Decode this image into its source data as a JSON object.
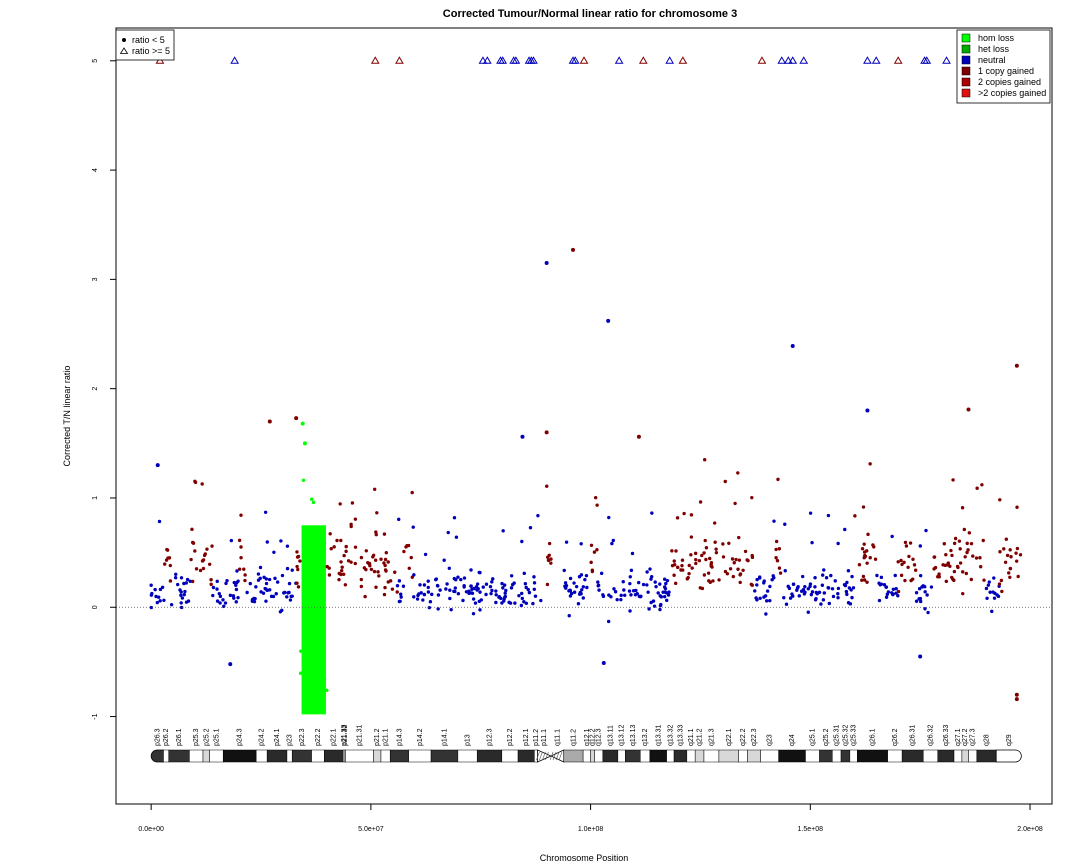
{
  "chart_data": {
    "type": "scatter",
    "title": "Corrected Tumour/Normal linear ratio for chromosome  3",
    "xlabel": "Chromosome Position",
    "ylabel": "Corrected T/N linear ratio",
    "xlim": [
      -8000000,
      205000000
    ],
    "ylim": [
      -1.8,
      5.3
    ],
    "x_ticks": [
      0,
      50000000,
      100000000,
      150000000,
      200000000
    ],
    "x_tick_labels": [
      "0.0e+00",
      "5.0e+07",
      "1.0e+08",
      "1.5e+08",
      "2.0e+08"
    ],
    "y_ticks": [
      -1,
      0,
      1,
      2,
      3,
      4,
      5
    ],
    "y_tick_labels": [
      "-1",
      "0",
      "1",
      "2",
      "3",
      "4",
      "5"
    ],
    "reference_line_y": 0,
    "shape_legend": [
      {
        "label": "ratio < 5",
        "shape": "dot"
      },
      {
        "label": "ratio >= 5",
        "shape": "triangle"
      }
    ],
    "legend": [
      {
        "label": "hom loss",
        "color": "#00ff00"
      },
      {
        "label": "het loss",
        "color": "#00aa00"
      },
      {
        "label": "neutral",
        "color": "#0000bb"
      },
      {
        "label": "1 copy gained",
        "color": "#800000"
      },
      {
        "label": "2 copies gained",
        "color": "#aa0000"
      },
      {
        "label": ">2 copies gained",
        "color": "#dd1111"
      }
    ],
    "colors": {
      "hom_loss": "#00ff00",
      "neutral": "#0000bb",
      "gain": "#800000"
    },
    "segments": [
      {
        "start": 0,
        "end": 3000000,
        "state": "neutral"
      },
      {
        "start": 3000000,
        "end": 4500000,
        "state": "gain"
      },
      {
        "start": 4500000,
        "end": 9000000,
        "state": "neutral"
      },
      {
        "start": 9000000,
        "end": 14000000,
        "state": "gain"
      },
      {
        "start": 14000000,
        "end": 20000000,
        "state": "neutral"
      },
      {
        "start": 20000000,
        "end": 21500000,
        "state": "gain"
      },
      {
        "start": 21500000,
        "end": 33000000,
        "state": "neutral"
      },
      {
        "start": 33000000,
        "end": 34000000,
        "state": "gain"
      },
      {
        "start": 34000000,
        "end": 40000000,
        "state": "hom_loss"
      },
      {
        "start": 40000000,
        "end": 56000000,
        "state": "gain"
      },
      {
        "start": 56000000,
        "end": 57500000,
        "state": "neutral"
      },
      {
        "start": 57500000,
        "end": 59500000,
        "state": "gain"
      },
      {
        "start": 59500000,
        "end": 89000000,
        "state": "neutral"
      },
      {
        "start": 90000000,
        "end": 91000000,
        "state": "gain"
      },
      {
        "start": 93000000,
        "end": 100000000,
        "state": "neutral"
      },
      {
        "start": 100000000,
        "end": 101500000,
        "state": "gain"
      },
      {
        "start": 101500000,
        "end": 118000000,
        "state": "neutral"
      },
      {
        "start": 118000000,
        "end": 137000000,
        "state": "gain"
      },
      {
        "start": 137000000,
        "end": 142000000,
        "state": "neutral"
      },
      {
        "start": 142000000,
        "end": 143500000,
        "state": "gain"
      },
      {
        "start": 143500000,
        "end": 160000000,
        "state": "neutral"
      },
      {
        "start": 160000000,
        "end": 165000000,
        "state": "gain"
      },
      {
        "start": 165000000,
        "end": 170000000,
        "state": "neutral"
      },
      {
        "start": 170000000,
        "end": 174000000,
        "state": "gain"
      },
      {
        "start": 174000000,
        "end": 178000000,
        "state": "neutral"
      },
      {
        "start": 178000000,
        "end": 190000000,
        "state": "gain"
      },
      {
        "start": 190000000,
        "end": 193000000,
        "state": "neutral"
      },
      {
        "start": 193000000,
        "end": 198000000,
        "state": "gain"
      }
    ],
    "outliers": [
      {
        "x": 1500000,
        "y": 1.3,
        "state": "neutral"
      },
      {
        "x": 27000000,
        "y": 1.7,
        "state": "gain"
      },
      {
        "x": 33000000,
        "y": 1.73,
        "state": "gain"
      },
      {
        "x": 34500000,
        "y": 1.68,
        "state": "hom_loss"
      },
      {
        "x": 35000000,
        "y": 1.5,
        "state": "hom_loss"
      },
      {
        "x": 84500000,
        "y": 1.56,
        "state": "neutral"
      },
      {
        "x": 90000000,
        "y": 1.6,
        "state": "gain"
      },
      {
        "x": 90000000,
        "y": 3.15,
        "state": "neutral"
      },
      {
        "x": 96000000,
        "y": 3.27,
        "state": "gain"
      },
      {
        "x": 104000000,
        "y": 2.62,
        "state": "neutral"
      },
      {
        "x": 111000000,
        "y": 1.56,
        "state": "gain"
      },
      {
        "x": 146000000,
        "y": 2.39,
        "state": "neutral"
      },
      {
        "x": 163000000,
        "y": 1.8,
        "state": "neutral"
      },
      {
        "x": 186000000,
        "y": 1.81,
        "state": "gain"
      },
      {
        "x": 197000000,
        "y": 2.21,
        "state": "gain"
      },
      {
        "x": 197000000,
        "y": -0.8,
        "state": "gain"
      },
      {
        "x": 197000000,
        "y": -0.84,
        "state": "gain"
      },
      {
        "x": 103000000,
        "y": -0.51,
        "state": "neutral"
      },
      {
        "x": 18000000,
        "y": -0.52,
        "state": "neutral"
      },
      {
        "x": 175000000,
        "y": -0.45,
        "state": "neutral"
      }
    ],
    "high_ratio_points": [
      {
        "x": 2000000,
        "state": "gain"
      },
      {
        "x": 19000000,
        "state": "neutral"
      },
      {
        "x": 51000000,
        "state": "gain"
      },
      {
        "x": 56500000,
        "state": "gain"
      },
      {
        "x": 75500000,
        "state": "neutral"
      },
      {
        "x": 76500000,
        "state": "neutral"
      },
      {
        "x": 79500000,
        "state": "neutral"
      },
      {
        "x": 80000000,
        "state": "neutral"
      },
      {
        "x": 82500000,
        "state": "neutral"
      },
      {
        "x": 83000000,
        "state": "neutral"
      },
      {
        "x": 86000000,
        "state": "neutral"
      },
      {
        "x": 86500000,
        "state": "neutral"
      },
      {
        "x": 87000000,
        "state": "neutral"
      },
      {
        "x": 96000000,
        "state": "neutral"
      },
      {
        "x": 96500000,
        "state": "neutral"
      },
      {
        "x": 98500000,
        "state": "gain"
      },
      {
        "x": 106500000,
        "state": "neutral"
      },
      {
        "x": 112000000,
        "state": "gain"
      },
      {
        "x": 118000000,
        "state": "neutral"
      },
      {
        "x": 121000000,
        "state": "gain"
      },
      {
        "x": 139000000,
        "state": "gain"
      },
      {
        "x": 143500000,
        "state": "neutral"
      },
      {
        "x": 145000000,
        "state": "neutral"
      },
      {
        "x": 146000000,
        "state": "neutral"
      },
      {
        "x": 148500000,
        "state": "neutral"
      },
      {
        "x": 163000000,
        "state": "neutral"
      },
      {
        "x": 165000000,
        "state": "neutral"
      },
      {
        "x": 170000000,
        "state": "gain"
      },
      {
        "x": 176000000,
        "state": "neutral"
      },
      {
        "x": 176500000,
        "state": "neutral"
      },
      {
        "x": 181000000,
        "state": "neutral"
      }
    ],
    "bands": [
      {
        "name": "p26.3",
        "start": 0,
        "end": 2800000,
        "stain": "gpos50"
      },
      {
        "name": "p26.2",
        "start": 2800000,
        "end": 4000000,
        "stain": "gneg"
      },
      {
        "name": "p26.1",
        "start": 4000000,
        "end": 8700000,
        "stain": "gpos50"
      },
      {
        "name": "p25.3",
        "start": 8700000,
        "end": 11800000,
        "stain": "gneg"
      },
      {
        "name": "p25.2",
        "start": 11800000,
        "end": 13300000,
        "stain": "gpos25"
      },
      {
        "name": "p25.1",
        "start": 13300000,
        "end": 16400000,
        "stain": "gneg"
      },
      {
        "name": "p24.3",
        "start": 16400000,
        "end": 23900000,
        "stain": "gpos100"
      },
      {
        "name": "p24.2",
        "start": 23900000,
        "end": 26400000,
        "stain": "gneg"
      },
      {
        "name": "p24.1",
        "start": 26400000,
        "end": 30900000,
        "stain": "gpos75"
      },
      {
        "name": "p23",
        "start": 30900000,
        "end": 32100000,
        "stain": "gneg"
      },
      {
        "name": "p22.3",
        "start": 32100000,
        "end": 36500000,
        "stain": "gpos50"
      },
      {
        "name": "p22.2",
        "start": 36500000,
        "end": 39400000,
        "stain": "gneg"
      },
      {
        "name": "p22.1",
        "start": 39400000,
        "end": 43700000,
        "stain": "gpos75"
      },
      {
        "name": "p21.33",
        "start": 43700000,
        "end": 44100000,
        "stain": "gneg"
      },
      {
        "name": "p21.32",
        "start": 44100000,
        "end": 44200000,
        "stain": "gpos50"
      },
      {
        "name": "p21.31",
        "start": 44200000,
        "end": 50600000,
        "stain": "gneg"
      },
      {
        "name": "p21.2",
        "start": 50600000,
        "end": 52300000,
        "stain": "gpos25"
      },
      {
        "name": "p21.1",
        "start": 52300000,
        "end": 54400000,
        "stain": "gneg"
      },
      {
        "name": "p14.3",
        "start": 54400000,
        "end": 58600000,
        "stain": "gpos50"
      },
      {
        "name": "p14.2",
        "start": 58600000,
        "end": 63700000,
        "stain": "gneg"
      },
      {
        "name": "p14.1",
        "start": 63700000,
        "end": 69800000,
        "stain": "gpos50"
      },
      {
        "name": "p13",
        "start": 69800000,
        "end": 74200000,
        "stain": "gneg"
      },
      {
        "name": "p12.3",
        "start": 74200000,
        "end": 79800000,
        "stain": "gpos75"
      },
      {
        "name": "p12.2",
        "start": 79800000,
        "end": 83500000,
        "stain": "gneg"
      },
      {
        "name": "p12.1",
        "start": 83500000,
        "end": 87200000,
        "stain": "gpos75"
      },
      {
        "name": "p11.2",
        "start": 87200000,
        "end": 87900000,
        "stain": "gneg"
      },
      {
        "name": "p11.1",
        "start": 87900000,
        "end": 91000000,
        "stain": "acen"
      },
      {
        "name": "q11.1",
        "start": 91000000,
        "end": 93900000,
        "stain": "acen"
      },
      {
        "name": "q11.2",
        "start": 93900000,
        "end": 98300000,
        "stain": "gvar"
      },
      {
        "name": "q12.1",
        "start": 98300000,
        "end": 100000000,
        "stain": "gneg"
      },
      {
        "name": "q12.2",
        "start": 100000000,
        "end": 100900000,
        "stain": "gpos25"
      },
      {
        "name": "q12.3",
        "start": 100900000,
        "end": 102800000,
        "stain": "gneg"
      },
      {
        "name": "q13.11",
        "start": 102800000,
        "end": 106200000,
        "stain": "gpos75"
      },
      {
        "name": "q13.12",
        "start": 106200000,
        "end": 107900000,
        "stain": "gneg"
      },
      {
        "name": "q13.13",
        "start": 107900000,
        "end": 111300000,
        "stain": "gpos50"
      },
      {
        "name": "q13.2",
        "start": 111300000,
        "end": 113500000,
        "stain": "gneg"
      },
      {
        "name": "q13.31",
        "start": 113500000,
        "end": 117300000,
        "stain": "gpos100"
      },
      {
        "name": "q13.32",
        "start": 117300000,
        "end": 119000000,
        "stain": "gneg"
      },
      {
        "name": "q13.33",
        "start": 119000000,
        "end": 121900000,
        "stain": "gpos75"
      },
      {
        "name": "q21.1",
        "start": 121900000,
        "end": 123800000,
        "stain": "gneg"
      },
      {
        "name": "q21.2",
        "start": 123800000,
        "end": 125800000,
        "stain": "gpos25"
      },
      {
        "name": "q21.3",
        "start": 125800000,
        "end": 129200000,
        "stain": "gneg"
      },
      {
        "name": "q22.1",
        "start": 129200000,
        "end": 133700000,
        "stain": "gpos25"
      },
      {
        "name": "q22.2",
        "start": 133700000,
        "end": 135700000,
        "stain": "gneg"
      },
      {
        "name": "q22.3",
        "start": 135700000,
        "end": 138700000,
        "stain": "gpos25"
      },
      {
        "name": "q23",
        "start": 138700000,
        "end": 142800000,
        "stain": "gneg"
      },
      {
        "name": "q24",
        "start": 142800000,
        "end": 148900000,
        "stain": "gpos100"
      },
      {
        "name": "q25.1",
        "start": 148900000,
        "end": 152100000,
        "stain": "gneg"
      },
      {
        "name": "q25.2",
        "start": 152100000,
        "end": 155000000,
        "stain": "gpos50"
      },
      {
        "name": "q25.31",
        "start": 155000000,
        "end": 157000000,
        "stain": "gneg"
      },
      {
        "name": "q25.32",
        "start": 157000000,
        "end": 159000000,
        "stain": "gpos50"
      },
      {
        "name": "q25.33",
        "start": 159000000,
        "end": 160700000,
        "stain": "gneg"
      },
      {
        "name": "q26.1",
        "start": 160700000,
        "end": 167600000,
        "stain": "gpos100"
      },
      {
        "name": "q26.2",
        "start": 167600000,
        "end": 170900000,
        "stain": "gneg"
      },
      {
        "name": "q26.31",
        "start": 170900000,
        "end": 175700000,
        "stain": "gpos75"
      },
      {
        "name": "q26.32",
        "start": 175700000,
        "end": 179000000,
        "stain": "gneg"
      },
      {
        "name": "q26.33",
        "start": 179000000,
        "end": 182700000,
        "stain": "gpos75"
      },
      {
        "name": "q27.1",
        "start": 182700000,
        "end": 184500000,
        "stain": "gneg"
      },
      {
        "name": "q27.2",
        "start": 184500000,
        "end": 186000000,
        "stain": "gpos25"
      },
      {
        "name": "q27.3",
        "start": 186000000,
        "end": 187900000,
        "stain": "gneg"
      },
      {
        "name": "q28",
        "start": 187900000,
        "end": 192300000,
        "stain": "gpos75"
      },
      {
        "name": "q29",
        "start": 192300000,
        "end": 198022430,
        "stain": "gneg"
      }
    ]
  }
}
